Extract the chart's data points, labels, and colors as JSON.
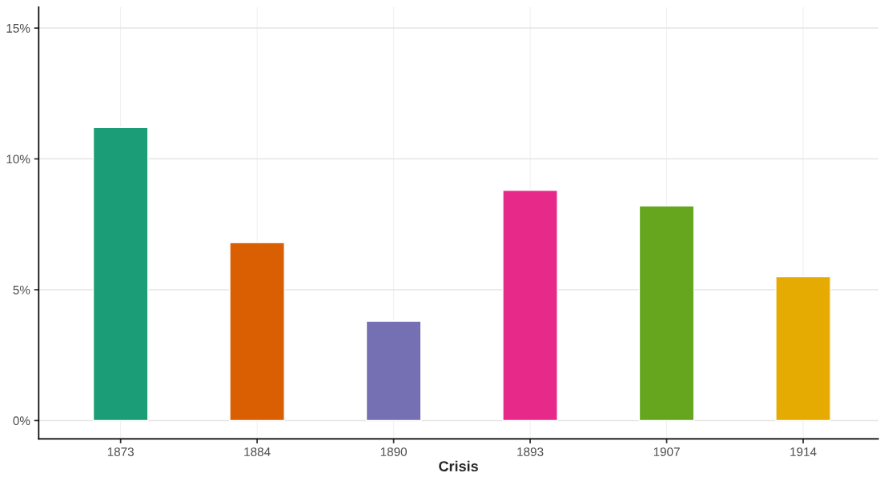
{
  "chart_data": {
    "type": "bar",
    "xlabel": "Crisis",
    "categories": [
      "1873",
      "1884",
      "1890",
      "1893",
      "1907",
      "1914"
    ],
    "values": [
      11.2,
      6.8,
      3.8,
      8.8,
      8.2,
      5.5
    ],
    "colors": [
      "#1b9e77",
      "#d95f02",
      "#7570b3",
      "#e7298a",
      "#66a61e",
      "#e6ab02"
    ],
    "ylim": [
      -0.7,
      15.8
    ],
    "yticks": [
      {
        "value": 0,
        "label": "0%"
      },
      {
        "value": 5,
        "label": "5%"
      },
      {
        "value": 10,
        "label": "10%"
      },
      {
        "value": 15,
        "label": "15%"
      }
    ],
    "grid": true
  }
}
